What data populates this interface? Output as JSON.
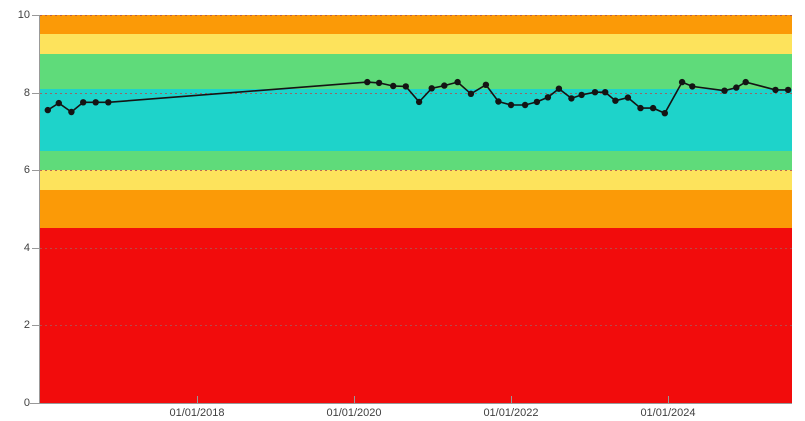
{
  "page": {
    "background": "#ffffff"
  },
  "chart_data": {
    "type": "line",
    "title": "",
    "xlabel": "",
    "ylabel": "",
    "grid": "dotted horizontal lines at every 2 units",
    "legend": "none",
    "x_axis": {
      "domain": [
        2016.0,
        2025.58
      ],
      "tick_values": [
        2018,
        2020,
        2022,
        2024
      ],
      "tick_labels": [
        "01/01/2018",
        "01/01/2020",
        "01/01/2022",
        "01/01/2024"
      ]
    },
    "y_axis": {
      "range": [
        0,
        10
      ],
      "tick_values": [
        0,
        2,
        4,
        6,
        8,
        10
      ],
      "tick_labels": [
        "0",
        "2",
        "4",
        "6",
        "8",
        "10"
      ]
    },
    "bands": [
      {
        "name": "band-orange-top",
        "from": 9.5,
        "to": 10.0,
        "color": "#FB9A07"
      },
      {
        "name": "band-yellow-top",
        "from": 9.0,
        "to": 9.5,
        "color": "#FDE35C"
      },
      {
        "name": "band-green-top",
        "from": 8.1,
        "to": 9.0,
        "color": "#5FDB7A"
      },
      {
        "name": "band-teal-ideal",
        "from": 6.5,
        "to": 8.1,
        "color": "#1ED3CA"
      },
      {
        "name": "band-green-low",
        "from": 6.0,
        "to": 6.5,
        "color": "#5FDB7A"
      },
      {
        "name": "band-yellow-low",
        "from": 5.5,
        "to": 6.0,
        "color": "#FDE35C"
      },
      {
        "name": "band-orange-low",
        "from": 4.5,
        "to": 5.5,
        "color": "#FB9A07"
      },
      {
        "name": "band-red-bottom",
        "from": 0.0,
        "to": 4.5,
        "color": "#F20C0C"
      }
    ],
    "series": [
      {
        "name": "measured-value",
        "line_color": "#141414",
        "marker_color": "#141414",
        "points": [
          [
            2016.1,
            7.55
          ],
          [
            2016.24,
            7.73
          ],
          [
            2016.4,
            7.5
          ],
          [
            2016.55,
            7.75
          ],
          [
            2016.71,
            7.75
          ],
          [
            2016.87,
            7.75
          ],
          [
            2020.17,
            8.27
          ],
          [
            2020.32,
            8.25
          ],
          [
            2020.5,
            8.17
          ],
          [
            2020.66,
            8.16
          ],
          [
            2020.83,
            7.76
          ],
          [
            2020.99,
            8.11
          ],
          [
            2021.15,
            8.18
          ],
          [
            2021.32,
            8.27
          ],
          [
            2021.49,
            7.97
          ],
          [
            2021.68,
            8.2
          ],
          [
            2021.84,
            7.77
          ],
          [
            2022.0,
            7.68
          ],
          [
            2022.18,
            7.68
          ],
          [
            2022.33,
            7.76
          ],
          [
            2022.47,
            7.88
          ],
          [
            2022.61,
            8.1
          ],
          [
            2022.77,
            7.85
          ],
          [
            2022.9,
            7.94
          ],
          [
            2023.07,
            8.01
          ],
          [
            2023.2,
            8.01
          ],
          [
            2023.33,
            7.79
          ],
          [
            2023.49,
            7.87
          ],
          [
            2023.65,
            7.6
          ],
          [
            2023.81,
            7.6
          ],
          [
            2023.96,
            7.47
          ],
          [
            2024.18,
            8.27
          ],
          [
            2024.31,
            8.16
          ],
          [
            2024.72,
            8.05
          ],
          [
            2024.87,
            8.13
          ],
          [
            2024.99,
            8.27
          ],
          [
            2025.37,
            8.07
          ],
          [
            2025.53,
            8.07
          ]
        ]
      }
    ],
    "colors": {
      "axis": "#999999",
      "tick_label": "#404040",
      "gridline": "#AD5454",
      "line": "#141414"
    }
  }
}
